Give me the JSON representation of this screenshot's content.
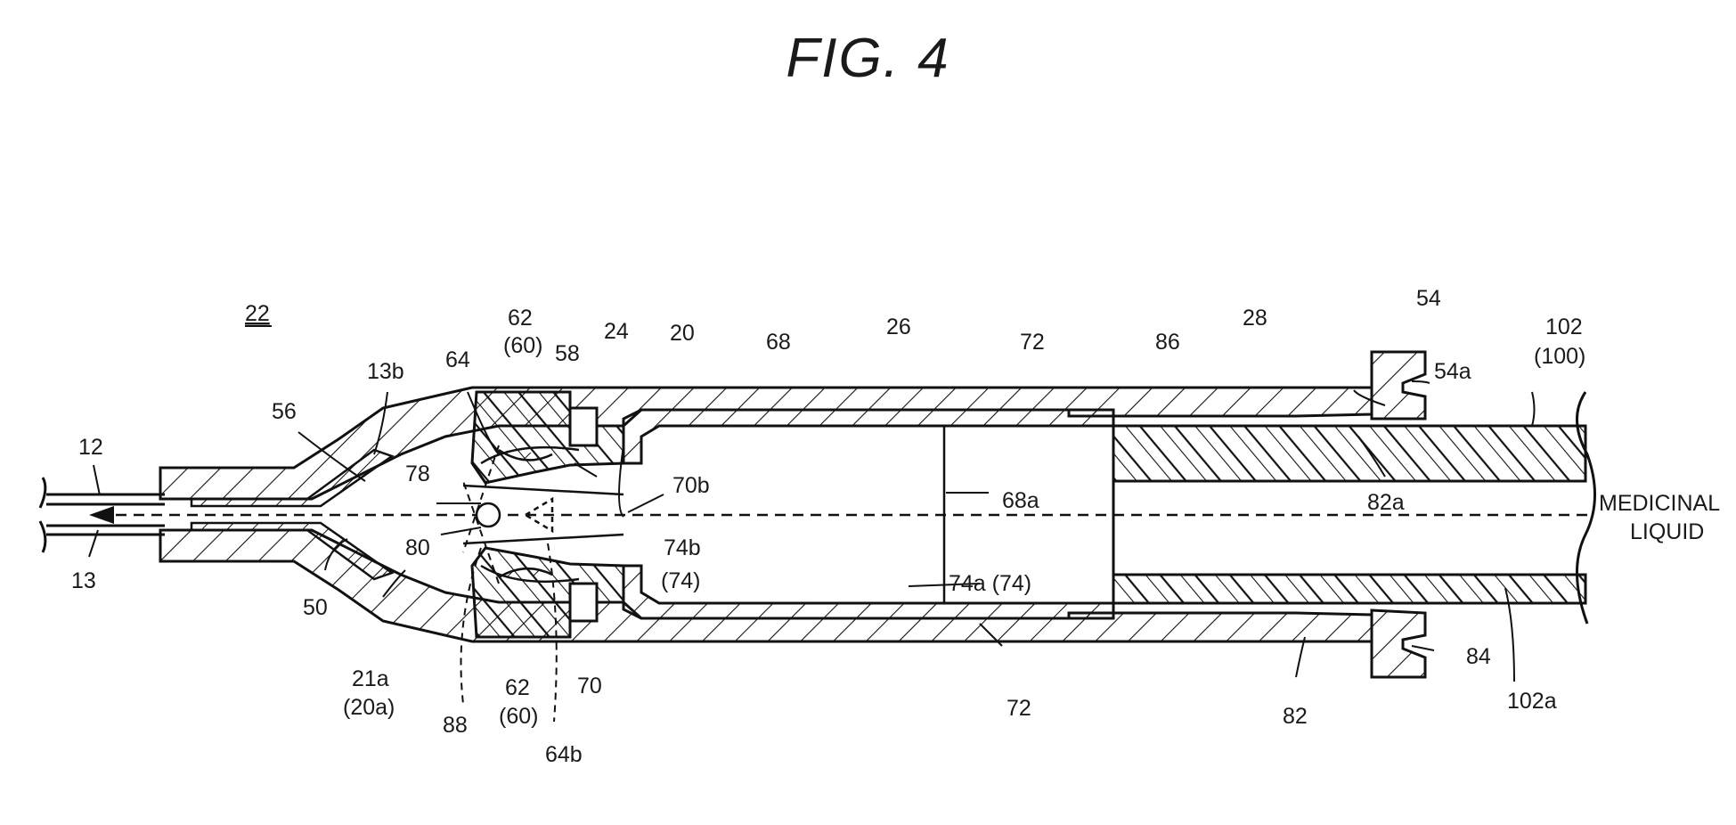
{
  "figure": {
    "title": "FIG. 4",
    "assembly_ref": "22",
    "flow_label_line1": "MEDICINAL",
    "flow_label_line2": "LIQUID",
    "labels": {
      "l12": "12",
      "l13": "13",
      "l13b": "13b",
      "l56": "56",
      "l50": "50",
      "l21a": "21a",
      "l20a": "(20a)",
      "l64": "64",
      "l62t": "62",
      "l60t": "(60)",
      "l58": "58",
      "l24": "24",
      "l20": "20",
      "l78": "78",
      "l80": "80",
      "l88": "88",
      "l62b": "62",
      "l60b": "(60)",
      "l64b": "64b",
      "l70": "70",
      "l70b": "70b",
      "l74b": "74b",
      "l74": "(74)",
      "l68": "68",
      "l68a": "68a",
      "l74a": "74a (74)",
      "l26": "26",
      "l72t": "72",
      "l72b": "72",
      "l86": "86",
      "l28": "28",
      "l82a": "82a",
      "l82": "82",
      "l54": "54",
      "l54a": "54a",
      "l84": "84",
      "l102": "102",
      "l100": "(100)",
      "l102a": "102a"
    }
  }
}
